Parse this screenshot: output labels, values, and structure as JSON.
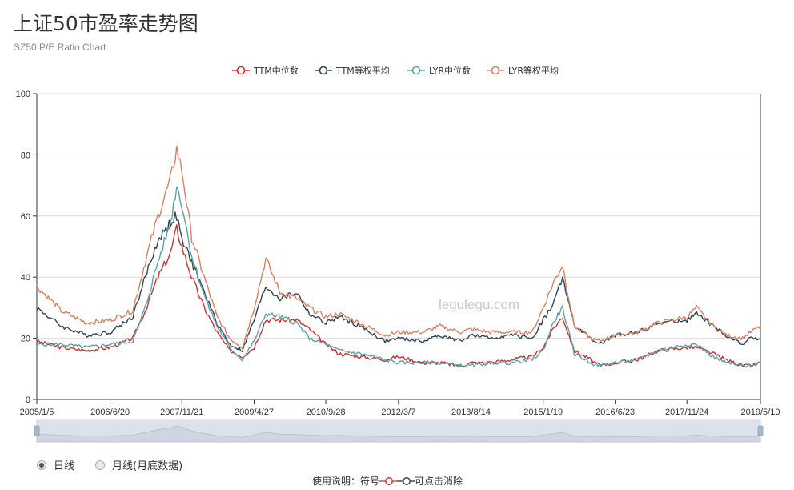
{
  "header": {
    "title": "上证50市盈率走势图",
    "subtitle": "SZ50 P/E Ratio Chart"
  },
  "watermark": "legulegu.com",
  "colors": {
    "ttm_median": "#c23531",
    "ttm_weighted": "#2f4554",
    "lyr_median": "#61a0a8",
    "lyr_weighted": "#d48265",
    "grid": "#d9d9d9",
    "axis": "#333333",
    "slider_fill": "#dde1ea"
  },
  "period_options": [
    {
      "label": "日线",
      "selected": true
    },
    {
      "label": "月线(月底数据)",
      "selected": false
    }
  ],
  "usage": {
    "prefix": "使用说明：符号",
    "suffix": "可点击消除"
  },
  "chart_data": {
    "type": "line",
    "title": "上证50市盈率走势图",
    "subtitle": "SZ50 P/E Ratio Chart",
    "ylim": [
      0,
      100
    ],
    "yticks": [
      0,
      20,
      40,
      60,
      80,
      100
    ],
    "xlim": [
      "2005-01-05",
      "2019-05-10"
    ],
    "x_tick_labels": [
      "2005/1/5",
      "2006/6/20",
      "2007/11/21",
      "2009/4/27",
      "2010/9/28",
      "2012/3/7",
      "2013/8/14",
      "2015/1/19",
      "2016/6/23",
      "2017/11/24",
      "2019/5/10"
    ],
    "x_tick_dates": [
      "2005-01-05",
      "2006-06-20",
      "2007-11-21",
      "2009-04-27",
      "2010-09-28",
      "2012-03-07",
      "2013-08-14",
      "2015-01-19",
      "2016-06-23",
      "2017-11-24",
      "2019-05-10"
    ],
    "grid": true,
    "legend_position": "top-center",
    "x": [
      "2005-01-05",
      "2005-07-01",
      "2006-01-01",
      "2006-06-20",
      "2006-12-01",
      "2007-03-01",
      "2007-06-01",
      "2007-09-01",
      "2007-10-15",
      "2007-11-21",
      "2008-02-01",
      "2008-05-01",
      "2008-08-01",
      "2008-11-01",
      "2009-02-01",
      "2009-04-27",
      "2009-07-20",
      "2009-11-01",
      "2010-03-01",
      "2010-06-01",
      "2010-09-28",
      "2011-01-01",
      "2011-06-01",
      "2011-12-01",
      "2012-03-07",
      "2012-09-01",
      "2013-01-01",
      "2013-06-01",
      "2013-08-14",
      "2014-01-01",
      "2014-06-01",
      "2014-11-01",
      "2015-01-19",
      "2015-04-01",
      "2015-06-08",
      "2015-09-01",
      "2016-01-01",
      "2016-03-01",
      "2016-06-23",
      "2016-12-01",
      "2017-05-01",
      "2017-11-24",
      "2018-02-01",
      "2018-06-01",
      "2018-09-01",
      "2019-01-01",
      "2019-03-01",
      "2019-05-10"
    ],
    "series": [
      {
        "name": "TTM中位数",
        "values": [
          19,
          17,
          16,
          17,
          20,
          29,
          40,
          48,
          56,
          50,
          40,
          30,
          22,
          16,
          14,
          17,
          26,
          26,
          26,
          23,
          18,
          15,
          14,
          13,
          14,
          12,
          12,
          11,
          12,
          12,
          13,
          14,
          17,
          23,
          27,
          16,
          13,
          11,
          12,
          13,
          16,
          17,
          17,
          15,
          13,
          11,
          11,
          12
        ]
      },
      {
        "name": "TTM等权平均",
        "values": [
          30,
          24,
          21,
          22,
          27,
          40,
          52,
          58,
          60,
          52,
          45,
          35,
          25,
          18,
          16,
          26,
          37,
          33,
          35,
          28,
          25,
          27,
          24,
          19,
          20,
          19,
          21,
          19,
          21,
          20,
          21,
          20,
          26,
          31,
          40,
          24,
          20,
          18,
          21,
          22,
          25,
          26,
          28,
          24,
          21,
          18,
          20,
          20
        ]
      },
      {
        "name": "LYR中位数",
        "values": [
          18,
          18,
          17,
          18,
          19,
          30,
          45,
          58,
          70,
          64,
          47,
          34,
          24,
          17,
          13,
          19,
          28,
          27,
          25,
          20,
          18,
          16,
          15,
          13,
          12,
          12,
          12,
          11,
          11,
          12,
          12,
          13,
          16,
          25,
          30,
          15,
          12,
          11,
          12,
          13,
          16,
          18,
          18,
          14,
          12,
          11,
          11,
          12
        ]
      },
      {
        "name": "LYR等权平均",
        "values": [
          37,
          29,
          25,
          26,
          29,
          45,
          60,
          72,
          82,
          75,
          53,
          40,
          27,
          20,
          17,
          30,
          46,
          35,
          33,
          30,
          27,
          28,
          25,
          21,
          22,
          22,
          24,
          22,
          23,
          22,
          22,
          22,
          30,
          38,
          44,
          24,
          20,
          19,
          21,
          22,
          25,
          27,
          30,
          24,
          21,
          20,
          22,
          24
        ]
      }
    ]
  }
}
